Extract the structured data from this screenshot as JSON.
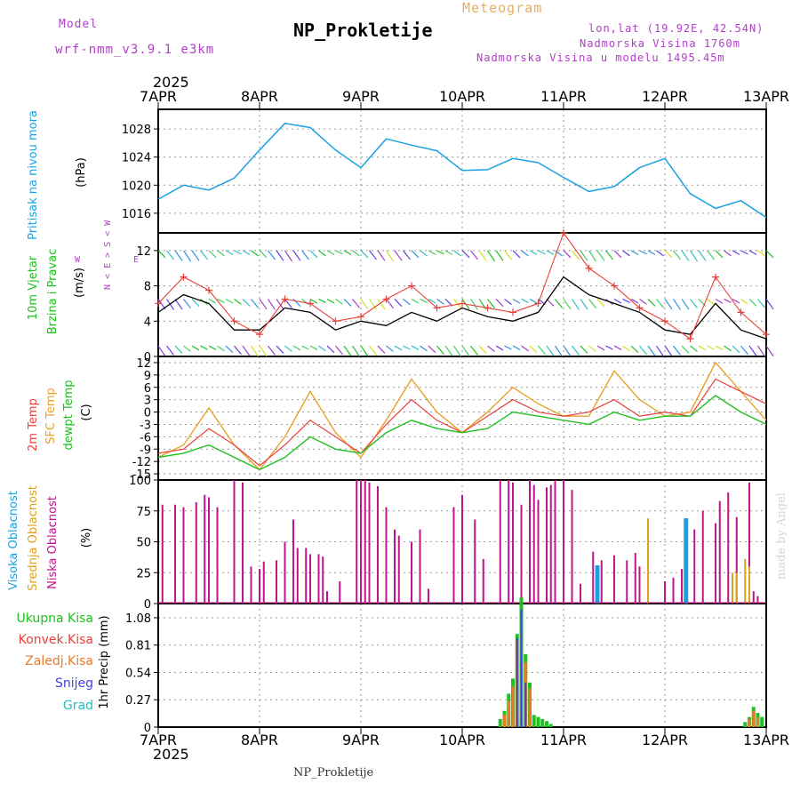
{
  "header": {
    "model_label": "Model",
    "model_name": "wrf-nmm_v3.9.1  e3km",
    "title": "NP_Prokletije",
    "subtitle": "Meteogram",
    "lonlat": "lon,lat (19.92E, 42.54N)",
    "elevation": "Nadmorska Visina 1760m",
    "model_elevation": "Nadmorska Visina u modelu 1495.45m",
    "footer_title": "NP_Prokletije",
    "watermark": "made by Angel"
  },
  "colors": {
    "pressure": "#1ba1e2",
    "temp2m": "#e8403a",
    "sfc": "#e8a22a",
    "dewpt": "#20c020",
    "wind_speed": "#000000",
    "gust": "#e8403a",
    "high_cloud": "#1ba1e2",
    "mid_cloud": "#e0a020",
    "low_cloud": "#c0148c",
    "total_precip": "#20c020",
    "conv_precip": "#e8403a",
    "strat_precip": "#e87a2a",
    "snow": "#4040e0",
    "hail": "#20c0c0",
    "purple_text": "#b040c8"
  },
  "time_axis": {
    "year": "2025",
    "labels": [
      "7APR",
      "8APR",
      "9APR",
      "10APR",
      "11APR",
      "12APR",
      "13APR"
    ]
  },
  "panels": {
    "pressure": {
      "label": "Pritisak na nivou mora",
      "unit": "(hPa)"
    },
    "wind": {
      "label1": "10m Vjetar",
      "label2": "Brzina i Pravac",
      "unit": "(m/s)",
      "compass": "N < E > S < W"
    },
    "temp": {
      "label1": "2m Temp",
      "label2": "SFC Temp",
      "label3": "dewpt Temp",
      "unit": "(C)"
    },
    "cloud": {
      "label_high": "Visoka Oblacnost",
      "label_mid": "Srednja Oblacnost",
      "label_low": "Niska Oblacnost",
      "unit": "(%)"
    },
    "precip": {
      "unit": "1hr Precip (mm)",
      "legend": [
        "Ukupna Kisa",
        "Konvek.Kisa",
        "Zaledj.Kisa",
        "Snijeg",
        "Grad"
      ]
    }
  },
  "chart_data": [
    {
      "type": "line",
      "title": "Pritisak na nivou mora",
      "ylabel": "(hPa)",
      "x_hours": [
        0,
        6,
        12,
        18,
        24,
        30,
        36,
        42,
        48,
        54,
        60,
        66,
        72,
        78,
        84,
        90,
        96,
        102,
        108,
        114,
        120,
        126,
        132,
        138,
        144
      ],
      "yticks": [
        1016,
        1020,
        1024,
        1028
      ],
      "ylim": [
        1013.2,
        1030.8
      ],
      "series": [
        {
          "name": "SLP",
          "values": [
            1018,
            1020,
            1019.3,
            1021,
            1025,
            1028.8,
            1028.2,
            1025,
            1022.5,
            1026.6,
            1025.7,
            1024.9,
            1022.1,
            1022.2,
            1023.8,
            1023.2,
            1021.1,
            1019.1,
            1019.8,
            1022.5,
            1023.8,
            1018.8,
            1016.7,
            1017.8,
            1015.4
          ]
        }
      ]
    },
    {
      "type": "line",
      "title": "10m Vjetar Brzina i Pravac",
      "ylabel": "(m/s)",
      "x_hours": [
        0,
        6,
        12,
        18,
        24,
        30,
        36,
        42,
        48,
        54,
        60,
        66,
        72,
        78,
        84,
        90,
        96,
        102,
        108,
        114,
        120,
        126,
        132,
        138,
        144
      ],
      "yticks": [
        0,
        4,
        8,
        12
      ],
      "ylim": [
        0,
        14
      ],
      "series": [
        {
          "name": "Brzina",
          "values": [
            5,
            7,
            6,
            3,
            3,
            5.5,
            5,
            3,
            4,
            3.5,
            5,
            4,
            5.5,
            4.5,
            4,
            5,
            9,
            7,
            6,
            5,
            3,
            2.5,
            6,
            3,
            2
          ]
        },
        {
          "name": "Udari",
          "values": [
            6,
            9,
            7.5,
            4,
            2.5,
            6.5,
            6,
            4,
            4.5,
            6.5,
            8,
            5.5,
            6,
            5.5,
            5,
            6,
            14,
            10,
            8,
            5.5,
            4,
            2,
            9,
            5,
            2.5
          ]
        }
      ]
    },
    {
      "type": "line",
      "title": "Temperatura",
      "ylabel": "(C)",
      "x_hours": [
        0,
        6,
        12,
        18,
        24,
        30,
        36,
        42,
        48,
        54,
        60,
        66,
        72,
        78,
        84,
        90,
        96,
        102,
        108,
        114,
        120,
        126,
        132,
        138,
        144
      ],
      "yticks": [
        -15,
        -12,
        -9,
        -6,
        -3,
        0,
        3,
        6,
        9,
        12
      ],
      "ylim": [
        -16.5,
        13.5
      ],
      "series": [
        {
          "name": "2m Temp",
          "values": [
            -10,
            -9,
            -4,
            -8,
            -13,
            -8,
            -2,
            -6,
            -10,
            -3,
            3,
            -2,
            -5,
            -1,
            3,
            0,
            -1,
            0,
            3,
            -1,
            0,
            -1,
            8,
            5,
            2
          ]
        },
        {
          "name": "SFC Temp",
          "values": [
            -11,
            -8,
            1,
            -8,
            -14,
            -6,
            5,
            -5,
            -11,
            -2,
            8,
            0,
            -5,
            0,
            6,
            2,
            -1,
            -1,
            10,
            3,
            -1,
            0,
            12,
            5,
            -2
          ]
        },
        {
          "name": "dewpt Temp",
          "values": [
            -11,
            -10,
            -8,
            -11,
            -14,
            -11,
            -6,
            -9,
            -10,
            -5,
            -2,
            -4,
            -5,
            -4,
            0,
            -1,
            -2,
            -3,
            0,
            -2,
            -1,
            -1,
            4,
            0,
            -3
          ]
        }
      ]
    },
    {
      "type": "bar",
      "title": "Oblacnost",
      "ylabel": "(%)",
      "yticks": [
        0,
        25,
        50,
        75,
        100
      ],
      "ylim": [
        0,
        100
      ],
      "series": [
        {
          "name": "Niska Oblacnost",
          "x_hours": [
            1,
            4,
            6,
            9,
            11,
            12,
            14,
            18,
            20,
            22,
            24,
            25,
            28,
            30,
            32,
            33,
            35,
            36,
            38,
            39,
            40,
            43,
            47,
            48,
            49,
            50,
            52,
            54,
            56,
            57,
            60,
            62,
            64,
            70,
            72,
            75,
            77,
            81,
            83,
            84,
            86,
            88,
            89,
            90,
            92,
            93,
            94,
            96,
            98,
            100,
            103,
            105,
            108,
            111,
            113,
            114,
            116,
            120,
            122,
            124,
            127,
            129,
            132,
            133,
            135,
            137,
            140,
            141,
            142
          ],
          "values": [
            80,
            80,
            78,
            82,
            88,
            86,
            78,
            100,
            98,
            30,
            28,
            34,
            35,
            50,
            68,
            45,
            45,
            40,
            40,
            38,
            10,
            18,
            100,
            100,
            100,
            98,
            95,
            78,
            60,
            55,
            50,
            60,
            12,
            78,
            88,
            68,
            36,
            100,
            100,
            98,
            80,
            100,
            96,
            84,
            94,
            96,
            100,
            100,
            92,
            16,
            42,
            35,
            39,
            35,
            41,
            30,
            20,
            18,
            21,
            28,
            60,
            75,
            65,
            83,
            90,
            70,
            98,
            10,
            6
          ]
        },
        {
          "name": "Srednja Oblacnost",
          "x_hours": [
            116,
            136,
            137,
            139,
            140
          ],
          "values": [
            69,
            25,
            25,
            36,
            30
          ]
        },
        {
          "name": "Visoka Oblacnost",
          "x_hours": [
            104,
            125
          ],
          "values": [
            31,
            69
          ]
        }
      ]
    },
    {
      "type": "bar",
      "title": "1hr Precip",
      "ylabel": "1hr Precip (mm)",
      "yticks": [
        0,
        0.27,
        0.54,
        0.81,
        1.08
      ],
      "ylim": [
        0,
        1.22
      ],
      "series": [
        {
          "name": "Ukupna Kisa",
          "x_hours": [
            81,
            82,
            83,
            84,
            85,
            86,
            87,
            88,
            89,
            90,
            91,
            92,
            93,
            139,
            140,
            141,
            142,
            143
          ],
          "values": [
            0.08,
            0.16,
            0.33,
            0.48,
            0.92,
            1.28,
            0.72,
            0.44,
            0.12,
            0.1,
            0.08,
            0.06,
            0.03,
            0.05,
            0.1,
            0.2,
            0.14,
            0.1
          ]
        },
        {
          "name": "Konvek.Kisa",
          "x_hours": [
            85,
            86,
            87,
            88
          ],
          "values": [
            0.12,
            0.2,
            0.08,
            0.06
          ]
        },
        {
          "name": "Zaledj.Kisa",
          "x_hours": [
            82,
            83,
            84,
            85,
            86,
            87,
            88,
            140,
            141,
            142
          ],
          "values": [
            0.12,
            0.26,
            0.4,
            0.86,
            1.12,
            0.64,
            0.38,
            0.08,
            0.16,
            0.1
          ]
        },
        {
          "name": "Snijeg",
          "x_hours": [
            85,
            86,
            87
          ],
          "values": [
            0.88,
            1.16,
            0.44
          ]
        },
        {
          "name": "Grad",
          "x_hours": [],
          "values": []
        }
      ]
    }
  ]
}
